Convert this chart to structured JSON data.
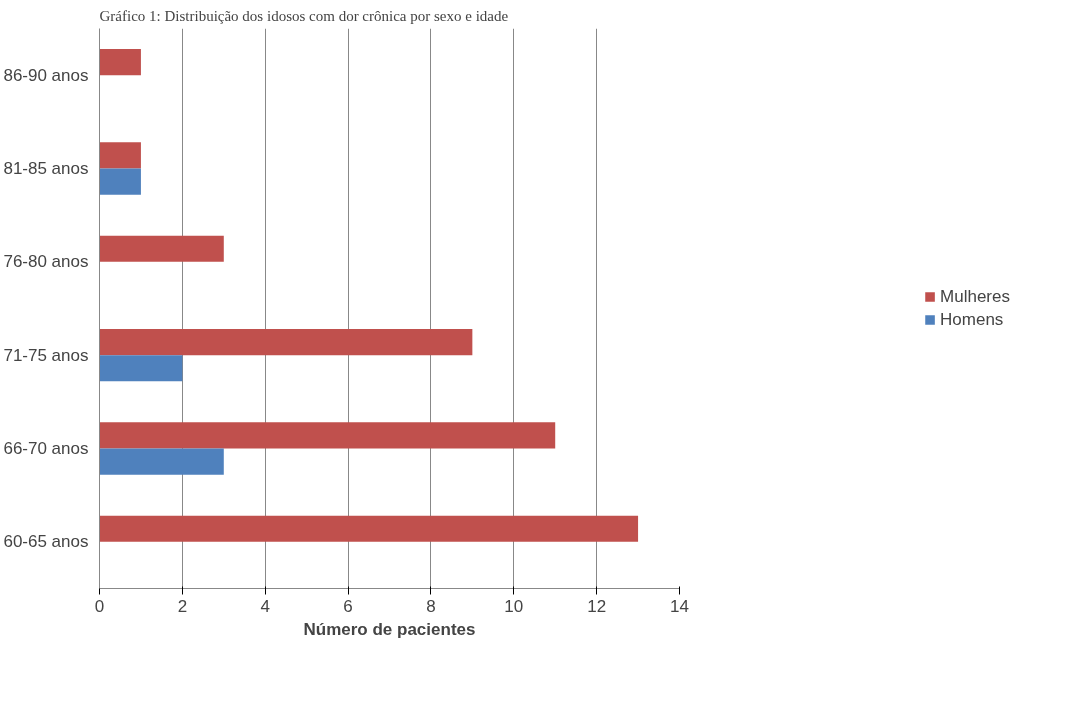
{
  "chart_data": {
    "type": "bar",
    "orientation": "horizontal",
    "title": "Gráfico 1: Distribuição dos idosos com dor crônica por sexo e idade",
    "xlabel": "Número de pacientes",
    "categories": [
      "86-90 anos",
      "81-85 anos",
      "76-80 anos",
      "71-75 anos",
      "66-70 anos",
      "60-65 anos"
    ],
    "series": [
      {
        "name": "Mulheres",
        "color": "#c0504d",
        "values": [
          1,
          1,
          3,
          9,
          11,
          13
        ]
      },
      {
        "name": "Homens",
        "color": "#4f81bd",
        "values": [
          null,
          1,
          null,
          2,
          3,
          null
        ]
      }
    ],
    "xlim": [
      0,
      14
    ],
    "xticks": [
      0,
      2,
      4,
      6,
      8,
      10,
      12,
      14
    ],
    "grid": "x",
    "legend": "right"
  }
}
